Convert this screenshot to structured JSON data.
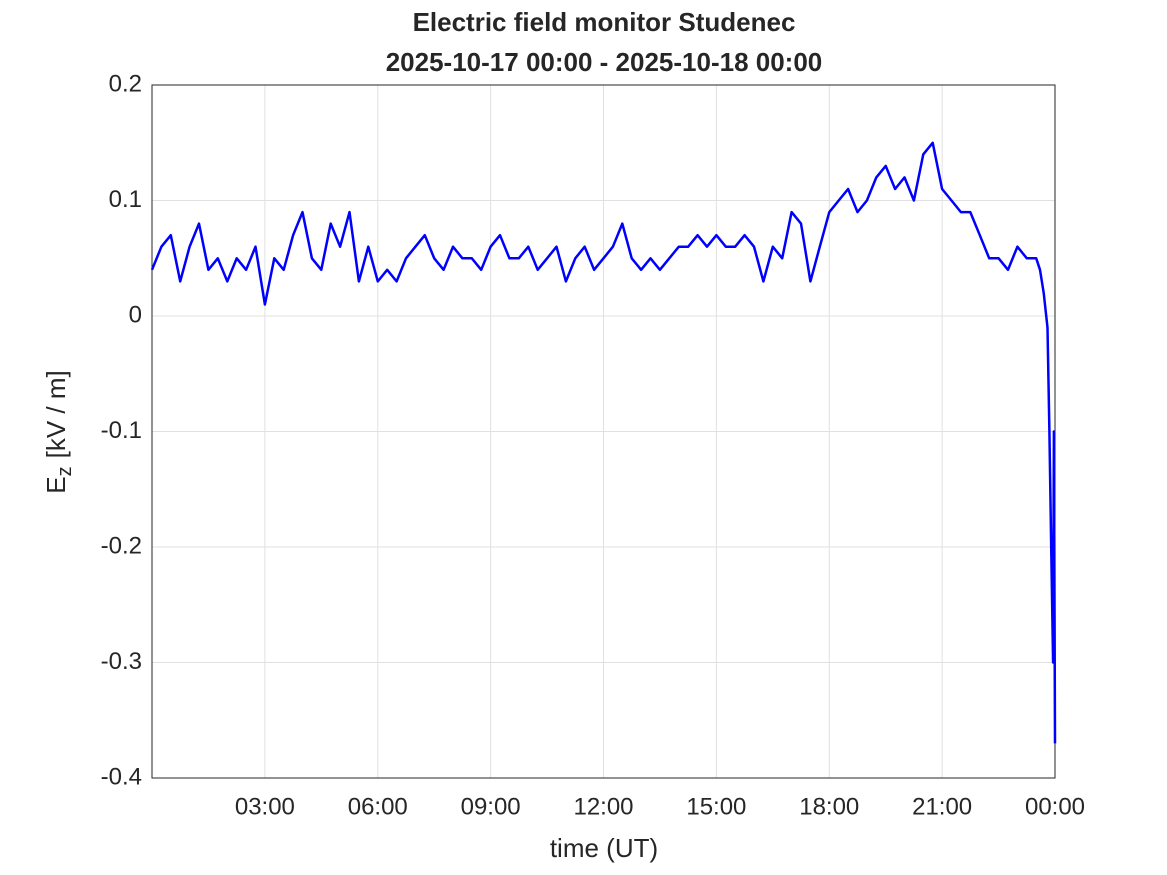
{
  "chart_data": {
    "type": "line",
    "title": "Electric field monitor Studenec",
    "subtitle": "2025-10-17 00:00 - 2025-10-18 00:00",
    "xlabel": "time (UT)",
    "ylabel": {
      "main": "E",
      "sub": "z",
      "rest": "[kV / m]"
    },
    "xlim": [
      0,
      24
    ],
    "ylim": [
      -0.4,
      0.2
    ],
    "xticks": [
      {
        "value": 3,
        "label": "03:00"
      },
      {
        "value": 6,
        "label": "06:00"
      },
      {
        "value": 9,
        "label": "09:00"
      },
      {
        "value": 12,
        "label": "12:00"
      },
      {
        "value": 15,
        "label": "15:00"
      },
      {
        "value": 18,
        "label": "18:00"
      },
      {
        "value": 21,
        "label": "21:00"
      },
      {
        "value": 24,
        "label": "00:00"
      }
    ],
    "yticks": [
      0.2,
      0.1,
      0,
      -0.1,
      -0.2,
      -0.3,
      -0.4
    ],
    "grid": true,
    "x": [
      0,
      0.25,
      0.5,
      0.75,
      1,
      1.25,
      1.5,
      1.75,
      2,
      2.25,
      2.5,
      2.75,
      3,
      3.25,
      3.5,
      3.75,
      4,
      4.25,
      4.5,
      4.75,
      5,
      5.25,
      5.5,
      5.75,
      6,
      6.25,
      6.5,
      6.75,
      7,
      7.25,
      7.5,
      7.75,
      8,
      8.25,
      8.5,
      8.75,
      9,
      9.25,
      9.5,
      9.75,
      10,
      10.25,
      10.5,
      10.75,
      11,
      11.25,
      11.5,
      11.75,
      12,
      12.25,
      12.5,
      12.75,
      13,
      13.25,
      13.5,
      13.75,
      14,
      14.25,
      14.5,
      14.75,
      15,
      15.25,
      15.5,
      15.75,
      16,
      16.25,
      16.5,
      16.75,
      17,
      17.25,
      17.5,
      17.75,
      18,
      18.25,
      18.5,
      18.75,
      19,
      19.25,
      19.5,
      19.75,
      20,
      20.25,
      20.5,
      20.75,
      21,
      21.25,
      21.5,
      21.75,
      22,
      22.25,
      22.5,
      22.75,
      23,
      23.25,
      23.5,
      23.6,
      23.7,
      23.8,
      23.85,
      23.9,
      23.95,
      23.97,
      24
    ],
    "series": [
      {
        "color": "#0000ff",
        "values": [
          0.04,
          0.06,
          0.07,
          0.03,
          0.06,
          0.08,
          0.04,
          0.05,
          0.03,
          0.05,
          0.04,
          0.06,
          0.01,
          0.05,
          0.04,
          0.07,
          0.09,
          0.05,
          0.04,
          0.08,
          0.06,
          0.09,
          0.03,
          0.06,
          0.03,
          0.04,
          0.03,
          0.05,
          0.06,
          0.07,
          0.05,
          0.04,
          0.06,
          0.05,
          0.05,
          0.04,
          0.06,
          0.07,
          0.05,
          0.05,
          0.06,
          0.04,
          0.05,
          0.06,
          0.03,
          0.05,
          0.06,
          0.04,
          0.05,
          0.06,
          0.08,
          0.05,
          0.04,
          0.05,
          0.04,
          0.05,
          0.06,
          0.06,
          0.07,
          0.06,
          0.07,
          0.06,
          0.06,
          0.07,
          0.06,
          0.03,
          0.06,
          0.05,
          0.09,
          0.08,
          0.03,
          0.06,
          0.09,
          0.1,
          0.11,
          0.09,
          0.1,
          0.12,
          0.13,
          0.11,
          0.12,
          0.1,
          0.14,
          0.15,
          0.11,
          0.1,
          0.09,
          0.09,
          0.07,
          0.05,
          0.05,
          0.04,
          0.06,
          0.05,
          0.05,
          0.04,
          0.02,
          -0.01,
          -0.1,
          -0.2,
          -0.3,
          -0.1,
          -0.37
        ]
      }
    ]
  }
}
